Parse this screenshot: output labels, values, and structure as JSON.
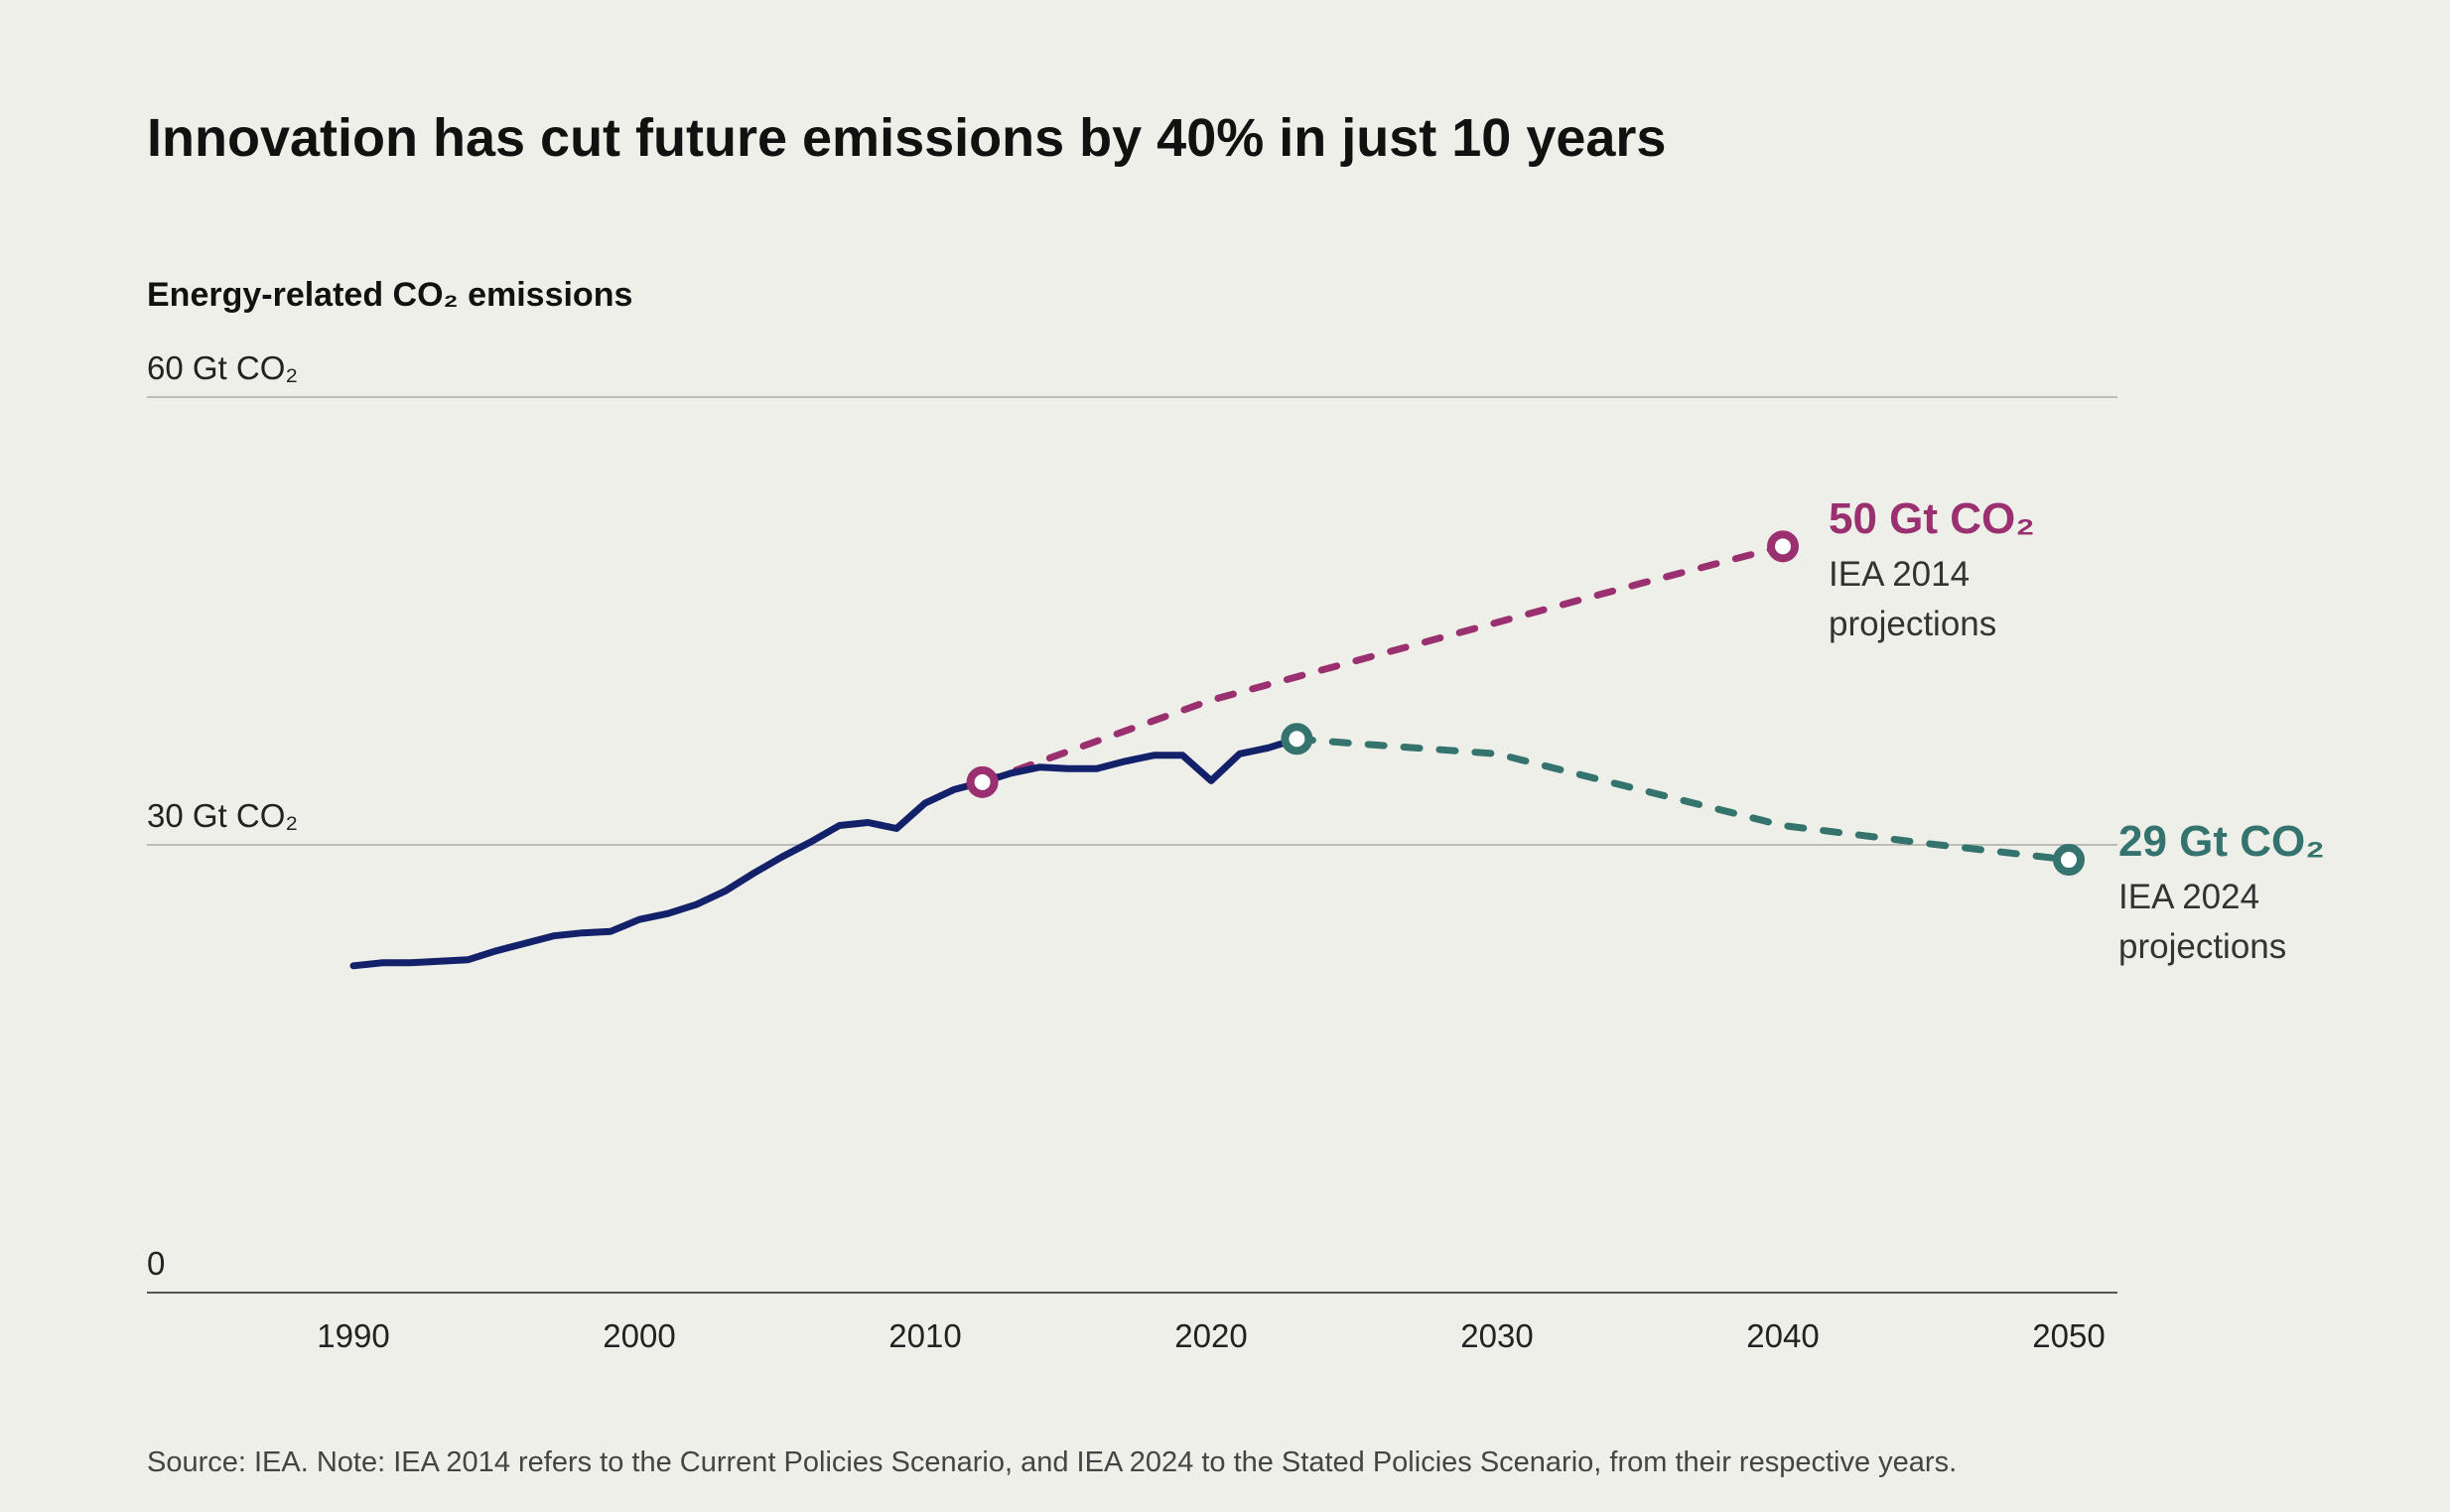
{
  "chart_data": {
    "type": "line",
    "title": "Innovation has cut future emissions by 40% in just 10 years",
    "ylabel": "Energy-related CO₂ emissions",
    "ylim": [
      0,
      60
    ],
    "xlim": [
      1983,
      2051
    ],
    "y_ticks": [
      {
        "value": 60,
        "label": "60 Gt CO₂"
      },
      {
        "value": 30,
        "label": "30 Gt CO₂"
      },
      {
        "value": 0,
        "label": "0"
      }
    ],
    "x_ticks": [
      1990,
      2000,
      2010,
      2020,
      2030,
      2040,
      2050
    ],
    "grid": true,
    "colors": {
      "background": "#eeefe9",
      "historical": "#13216a",
      "iea2014": "#9b3070",
      "iea2024": "#34736e"
    },
    "series": [
      {
        "key": "historical",
        "style": "solid",
        "x": [
          1990,
          1991,
          1992,
          1993,
          1994,
          1995,
          1996,
          1997,
          1998,
          1999,
          2000,
          2001,
          2002,
          2003,
          2004,
          2005,
          2006,
          2007,
          2008,
          2009,
          2010,
          2011,
          2012,
          2013,
          2014,
          2015,
          2016,
          2017,
          2018,
          2019,
          2020,
          2021,
          2022,
          2023
        ],
        "y": [
          21.9,
          22.1,
          22.1,
          22.2,
          22.3,
          22.9,
          23.4,
          23.9,
          24.1,
          24.2,
          25.0,
          25.4,
          26.0,
          26.9,
          28.1,
          29.2,
          30.2,
          31.3,
          31.5,
          31.1,
          32.8,
          33.7,
          34.2,
          34.8,
          35.2,
          35.1,
          35.1,
          35.6,
          36.0,
          36.0,
          34.3,
          36.1,
          36.5,
          37.1
        ]
      },
      {
        "key": "iea2014",
        "style": "dashed",
        "name": "IEA 2014 projections",
        "x": [
          2012,
          2020,
          2025,
          2030,
          2035,
          2040
        ],
        "y": [
          34.2,
          39.7,
          42.3,
          44.9,
          47.5,
          50
        ],
        "end_label": "50 Gt CO₂"
      },
      {
        "key": "iea2024",
        "style": "dashed",
        "name": "IEA 2024 projections",
        "x": [
          2023,
          2025,
          2030,
          2035,
          2040,
          2045,
          2050
        ],
        "y": [
          37.1,
          36.8,
          36.1,
          33.7,
          31.3,
          30.1,
          29
        ],
        "end_label": "29 Gt CO₂"
      }
    ],
    "annotations": {
      "iea2014": {
        "value": "50 Gt CO₂",
        "line1": "IEA 2014",
        "line2": "projections"
      },
      "iea2024": {
        "value": "29 Gt CO₂",
        "line1": "IEA 2024",
        "line2": "projections"
      }
    },
    "source": "Source: IEA. Note: IEA 2014 refers to the Current Policies Scenario, and IEA 2024 to the Stated Policies Scenario, from their respective years."
  }
}
